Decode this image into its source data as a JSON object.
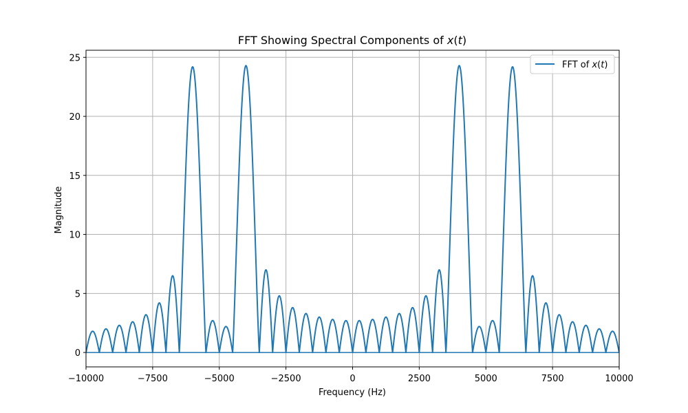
{
  "chart_data": {
    "type": "line",
    "title": {
      "prefix": "FFT Showing Spectral Components of ",
      "var": "x",
      "open": "(",
      "arg": "t",
      "close": ")"
    },
    "xlabel": "Frequency (Hz)",
    "ylabel": "Magnitude",
    "xlim": [
      -10000,
      10000
    ],
    "ylim": [
      -1.22,
      25.6
    ],
    "x_ticks": [
      -10000,
      -7500,
      -5000,
      -2500,
      0,
      2500,
      5000,
      7500,
      10000
    ],
    "x_tick_labels": [
      "−10000",
      "−7500",
      "−5000",
      "−2500",
      "0",
      "2500",
      "5000",
      "7500",
      "10000"
    ],
    "y_ticks": [
      0,
      5,
      10,
      15,
      20,
      25
    ],
    "y_tick_labels": [
      "0",
      "5",
      "10",
      "15",
      "20",
      "25"
    ],
    "grid": true,
    "legend_position": "top-right",
    "series": [
      {
        "name": {
          "prefix": "FFT of ",
          "var": "x",
          "open": "(",
          "arg": "t",
          "close": ")"
        },
        "color": "#1f77b4",
        "peaks": [
          {
            "center": -6000,
            "height": 24.2
          },
          {
            "center": -4000,
            "height": 24.3
          },
          {
            "center": 4000,
            "height": 24.3
          },
          {
            "center": 6000,
            "height": 24.2
          }
        ],
        "lobe_width_hz": 500,
        "first_zero_offset_hz": 1000,
        "x": [
          -10000,
          -9750,
          -9500,
          -9250,
          -9000,
          -8750,
          -8500,
          -8250,
          -8000,
          -7750,
          -7500,
          -7250,
          -7000,
          -6750,
          -6500,
          -6000,
          -5500,
          -5250,
          -5000,
          -4750,
          -4500,
          -4000,
          -3500,
          -3250,
          -3000,
          -2750,
          -2500,
          -2250,
          -2000,
          -1750,
          -1500,
          -1250,
          -1000,
          -750,
          -500,
          -250,
          0,
          250,
          500,
          750,
          1000,
          1250,
          1500,
          1750,
          2000,
          2250,
          2500,
          2750,
          3000,
          3250,
          3500,
          4000,
          4500,
          4750,
          5000,
          5250,
          5500,
          6000,
          6500,
          6750,
          7000,
          7250,
          7500,
          7750,
          8000,
          8250,
          8500,
          8750,
          9000,
          9250,
          9500,
          9750,
          10000
        ],
        "y": [
          0.0,
          1.8,
          0.0,
          2.0,
          0.0,
          2.3,
          0.0,
          2.6,
          0.0,
          3.2,
          0.0,
          4.2,
          0.0,
          6.5,
          0.0,
          24.2,
          0.0,
          2.7,
          0.0,
          2.2,
          0.0,
          24.3,
          0.0,
          7.0,
          0.0,
          4.8,
          0.0,
          3.8,
          0.0,
          3.3,
          0.0,
          3.0,
          0.0,
          2.8,
          0.0,
          2.7,
          0.0,
          2.7,
          0.0,
          2.8,
          0.0,
          3.0,
          0.0,
          3.3,
          0.0,
          3.8,
          0.0,
          4.8,
          0.0,
          7.0,
          0.0,
          24.3,
          0.0,
          2.2,
          0.0,
          2.7,
          0.0,
          24.2,
          0.0,
          6.5,
          0.0,
          4.2,
          0.0,
          3.2,
          0.0,
          2.6,
          0.0,
          2.3,
          0.0,
          2.0,
          0.0,
          1.8,
          0.0
        ]
      }
    ]
  }
}
